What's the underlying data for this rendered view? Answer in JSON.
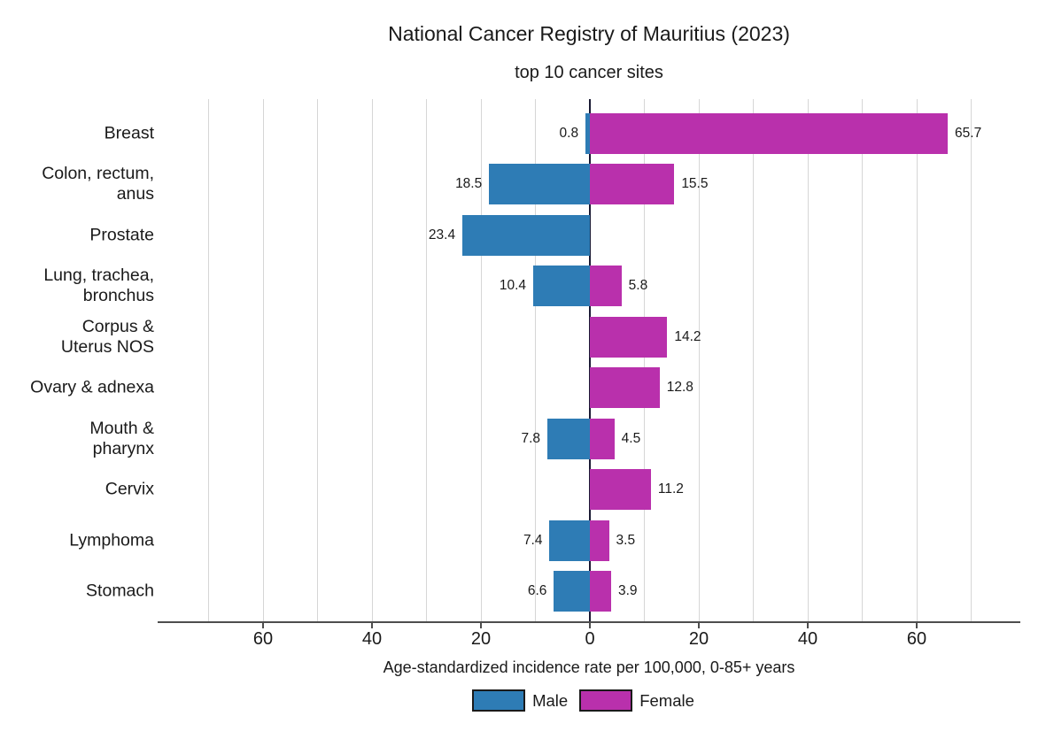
{
  "title": "National Cancer Registry of Mauritius (2023)",
  "subtitle": "top 10 cancer sites",
  "colors": {
    "male": "#2E7CB5",
    "female": "#B930AC",
    "zero_line": "#1a1a33",
    "grid": "#d6d6d6",
    "axis": "#4d4d4d",
    "text": "#1a1a1a"
  },
  "chart_data": {
    "type": "bar",
    "variant": "diverging-horizontal",
    "title": "National Cancer Registry of Mauritius (2023)",
    "subtitle": "top 10 cancer sites",
    "xlabel": "Age-standardized incidence rate per 100,000, 0-85+ years",
    "categories": [
      "Breast",
      "Colon, rectum,\nanus",
      "Prostate",
      "Lung, trachea,\nbronchus",
      "Corpus &\nUterus NOS",
      "Ovary & adnexa",
      "Mouth &\npharynx",
      "Cervix",
      "Lymphoma",
      "Stomach"
    ],
    "series": [
      {
        "name": "Male",
        "side": "left",
        "color": "#2E7CB5",
        "values": [
          0.8,
          18.5,
          23.4,
          10.4,
          null,
          null,
          7.8,
          null,
          7.4,
          6.6
        ]
      },
      {
        "name": "Female",
        "side": "right",
        "color": "#B930AC",
        "values": [
          65.7,
          15.5,
          null,
          5.8,
          14.2,
          12.8,
          4.5,
          11.2,
          3.5,
          3.9
        ]
      }
    ],
    "axis": {
      "ticks": [
        {
          "value": -60,
          "label": "60"
        },
        {
          "value": -40,
          "label": "40"
        },
        {
          "value": -20,
          "label": "20"
        },
        {
          "value": 0,
          "label": "0"
        },
        {
          "value": 20,
          "label": "20"
        },
        {
          "value": 40,
          "label": "40"
        },
        {
          "value": 60,
          "label": "60"
        }
      ],
      "grid": true,
      "grid_step": 10,
      "grid_max": 70,
      "xlim": [
        -79,
        79
      ]
    },
    "legend_position": "bottom",
    "value_label_decimals": 1
  },
  "legend": {
    "items": [
      {
        "label": "Male",
        "color": "#2E7CB5"
      },
      {
        "label": "Female",
        "color": "#B930AC"
      }
    ]
  }
}
